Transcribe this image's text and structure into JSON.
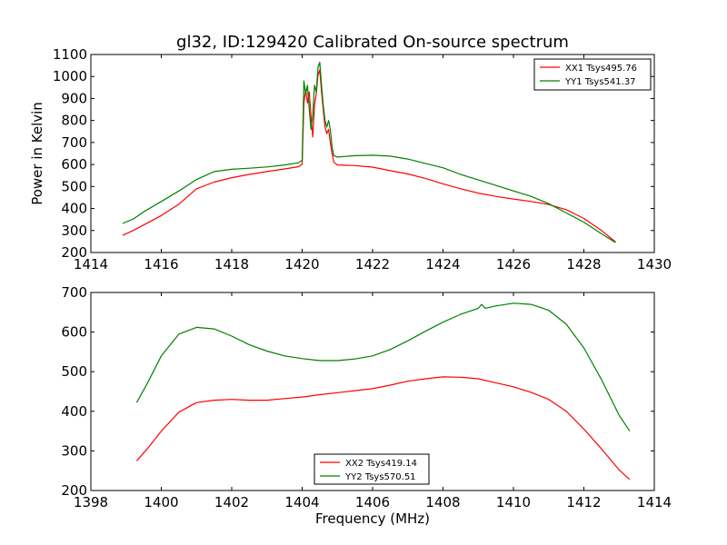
{
  "chart_data": [
    {
      "type": "line",
      "title": "gl32, ID:129420 Calibrated On-source spectrum",
      "xlabel": "",
      "ylabel": "Power in Kelvin",
      "xlim": [
        1414,
        1430
      ],
      "ylim": [
        200,
        1100
      ],
      "xticks": [
        1414,
        1416,
        1418,
        1420,
        1422,
        1424,
        1426,
        1428,
        1430
      ],
      "yticks": [
        200,
        300,
        400,
        500,
        600,
        700,
        800,
        900,
        1000,
        1100
      ],
      "legend_position": "top-right",
      "series": [
        {
          "name": "XX1 Tsys495.76",
          "color": "#ff0000",
          "points": [
            [
              1414.9,
              278
            ],
            [
              1415.2,
              300
            ],
            [
              1415.5,
              325
            ],
            [
              1416.0,
              368
            ],
            [
              1416.5,
              420
            ],
            [
              1417.0,
              490
            ],
            [
              1417.5,
              520
            ],
            [
              1418.0,
              540
            ],
            [
              1418.5,
              555
            ],
            [
              1419.0,
              568
            ],
            [
              1419.5,
              580
            ],
            [
              1419.9,
              590
            ],
            [
              1420.0,
              602
            ],
            [
              1420.05,
              880
            ],
            [
              1420.1,
              940
            ],
            [
              1420.15,
              880
            ],
            [
              1420.2,
              930
            ],
            [
              1420.25,
              820
            ],
            [
              1420.3,
              725
            ],
            [
              1420.35,
              870
            ],
            [
              1420.4,
              920
            ],
            [
              1420.45,
              1005
            ],
            [
              1420.5,
              1030
            ],
            [
              1420.55,
              930
            ],
            [
              1420.6,
              850
            ],
            [
              1420.65,
              770
            ],
            [
              1420.7,
              740
            ],
            [
              1420.75,
              760
            ],
            [
              1420.8,
              700
            ],
            [
              1420.85,
              650
            ],
            [
              1420.9,
              610
            ],
            [
              1421.0,
              598
            ],
            [
              1421.5,
              595
            ],
            [
              1422.0,
              588
            ],
            [
              1422.5,
              572
            ],
            [
              1423.0,
              557
            ],
            [
              1423.5,
              537
            ],
            [
              1424.0,
              512
            ],
            [
              1424.5,
              490
            ],
            [
              1425.0,
              470
            ],
            [
              1425.5,
              455
            ],
            [
              1426.0,
              443
            ],
            [
              1426.5,
              432
            ],
            [
              1427.0,
              418
            ],
            [
              1427.5,
              395
            ],
            [
              1428.0,
              355
            ],
            [
              1428.5,
              300
            ],
            [
              1428.9,
              248
            ]
          ]
        },
        {
          "name": "YY1 Tsys541.37",
          "color": "#008000",
          "points": [
            [
              1414.9,
              332
            ],
            [
              1415.2,
              352
            ],
            [
              1415.5,
              385
            ],
            [
              1416.0,
              432
            ],
            [
              1416.5,
              480
            ],
            [
              1417.0,
              532
            ],
            [
              1417.5,
              568
            ],
            [
              1418.0,
              578
            ],
            [
              1418.5,
              583
            ],
            [
              1419.0,
              589
            ],
            [
              1419.5,
              598
            ],
            [
              1419.9,
              608
            ],
            [
              1420.0,
              620
            ],
            [
              1420.05,
              980
            ],
            [
              1420.1,
              920
            ],
            [
              1420.15,
              960
            ],
            [
              1420.2,
              850
            ],
            [
              1420.25,
              760
            ],
            [
              1420.3,
              820
            ],
            [
              1420.35,
              960
            ],
            [
              1420.4,
              930
            ],
            [
              1420.45,
              1040
            ],
            [
              1420.5,
              1065
            ],
            [
              1420.55,
              960
            ],
            [
              1420.6,
              870
            ],
            [
              1420.65,
              800
            ],
            [
              1420.7,
              770
            ],
            [
              1420.75,
              800
            ],
            [
              1420.8,
              760
            ],
            [
              1420.85,
              680
            ],
            [
              1420.9,
              640
            ],
            [
              1421.0,
              634
            ],
            [
              1421.5,
              640
            ],
            [
              1422.0,
              642
            ],
            [
              1422.5,
              638
            ],
            [
              1423.0,
              625
            ],
            [
              1423.5,
              605
            ],
            [
              1424.0,
              585
            ],
            [
              1424.5,
              555
            ],
            [
              1425.0,
              530
            ],
            [
              1425.5,
              505
            ],
            [
              1426.0,
              480
            ],
            [
              1426.5,
              455
            ],
            [
              1427.0,
              422
            ],
            [
              1427.5,
              380
            ],
            [
              1428.0,
              338
            ],
            [
              1428.5,
              285
            ],
            [
              1428.9,
              245
            ]
          ]
        }
      ]
    },
    {
      "type": "line",
      "title": "",
      "xlabel": "Frequency (MHz)",
      "ylabel": "",
      "xlim": [
        1398,
        1414
      ],
      "ylim": [
        200,
        700
      ],
      "xticks": [
        1398,
        1400,
        1402,
        1404,
        1406,
        1408,
        1410,
        1412,
        1414
      ],
      "yticks": [
        200,
        300,
        400,
        500,
        600,
        700
      ],
      "legend_position": "bottom-center",
      "series": [
        {
          "name": "XX2 Tsys419.14",
          "color": "#ff0000",
          "points": [
            [
              1399.3,
              275
            ],
            [
              1399.6,
              305
            ],
            [
              1400.0,
              350
            ],
            [
              1400.5,
              398
            ],
            [
              1401.0,
              422
            ],
            [
              1401.5,
              428
            ],
            [
              1402.0,
              430
            ],
            [
              1402.5,
              428
            ],
            [
              1403.0,
              428
            ],
            [
              1403.5,
              432
            ],
            [
              1404.0,
              436
            ],
            [
              1404.5,
              442
            ],
            [
              1405.0,
              447
            ],
            [
              1405.5,
              452
            ],
            [
              1406.0,
              457
            ],
            [
              1406.5,
              466
            ],
            [
              1407.0,
              476
            ],
            [
              1407.5,
              482
            ],
            [
              1408.0,
              487
            ],
            [
              1408.5,
              486
            ],
            [
              1409.0,
              482
            ],
            [
              1409.5,
              472
            ],
            [
              1410.0,
              462
            ],
            [
              1410.5,
              448
            ],
            [
              1411.0,
              430
            ],
            [
              1411.5,
              400
            ],
            [
              1412.0,
              355
            ],
            [
              1412.5,
              305
            ],
            [
              1413.0,
              252
            ],
            [
              1413.3,
              228
            ]
          ]
        },
        {
          "name": "YY2 Tsys570.51",
          "color": "#008000",
          "points": [
            [
              1399.3,
              422
            ],
            [
              1399.6,
              470
            ],
            [
              1400.0,
              540
            ],
            [
              1400.5,
              595
            ],
            [
              1401.0,
              612
            ],
            [
              1401.5,
              608
            ],
            [
              1402.0,
              590
            ],
            [
              1402.5,
              568
            ],
            [
              1403.0,
              552
            ],
            [
              1403.5,
              540
            ],
            [
              1404.0,
              533
            ],
            [
              1404.5,
              528
            ],
            [
              1405.0,
              528
            ],
            [
              1405.5,
              532
            ],
            [
              1406.0,
              540
            ],
            [
              1406.5,
              556
            ],
            [
              1407.0,
              578
            ],
            [
              1407.5,
              602
            ],
            [
              1408.0,
              625
            ],
            [
              1408.5,
              645
            ],
            [
              1409.0,
              660
            ],
            [
              1409.1,
              670
            ],
            [
              1409.2,
              660
            ],
            [
              1409.5,
              666
            ],
            [
              1410.0,
              673
            ],
            [
              1410.5,
              670
            ],
            [
              1411.0,
              655
            ],
            [
              1411.5,
              620
            ],
            [
              1412.0,
              560
            ],
            [
              1412.5,
              480
            ],
            [
              1413.0,
              390
            ],
            [
              1413.3,
              350
            ]
          ]
        }
      ]
    }
  ]
}
